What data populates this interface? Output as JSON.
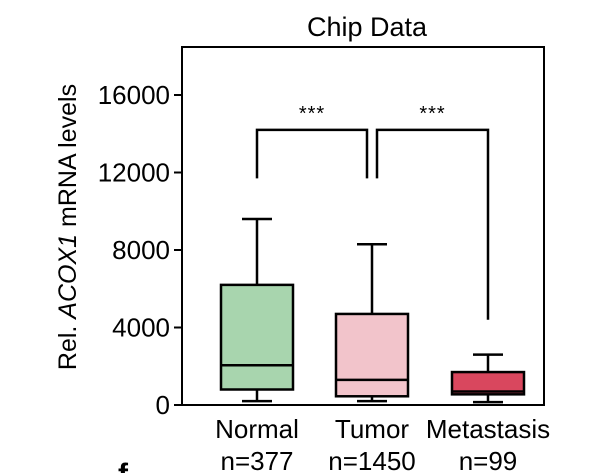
{
  "chart_data": {
    "type": "box",
    "title": "Chip Data",
    "ylabel_prefix": "Rel. ",
    "ylabel_italic": "ACOX1",
    "ylabel_suffix": " mRNA levels",
    "xlabel": "",
    "ylim": [
      0,
      17500
    ],
    "yticks": [
      0,
      4000,
      8000,
      12000,
      16000
    ],
    "ytick_labels": [
      "0",
      "4000",
      "8000",
      "12000",
      "16000"
    ],
    "grid": false,
    "categories": [
      {
        "label": "Normal",
        "n_label": "n=377",
        "whisker_low": 200,
        "q1": 800,
        "median": 2050,
        "q3": 6200,
        "whisker_high": 9600,
        "color": "#a8d5ae"
      },
      {
        "label": "Tumor",
        "n_label": "n=1450",
        "whisker_low": 200,
        "q1": 450,
        "median": 1300,
        "q3": 4700,
        "whisker_high": 8300,
        "color": "#f2c4cb"
      },
      {
        "label": "Metastasis",
        "n_label": "n=99",
        "whisker_low": 150,
        "q1": 550,
        "median": 700,
        "q3": 1700,
        "whisker_high": 2600,
        "color": "#d9475e"
      }
    ],
    "significance": [
      {
        "from": 0,
        "to": 1,
        "label": "***"
      },
      {
        "from": 1,
        "to": 2,
        "label": "***"
      }
    ]
  },
  "footer_glyph": "f"
}
